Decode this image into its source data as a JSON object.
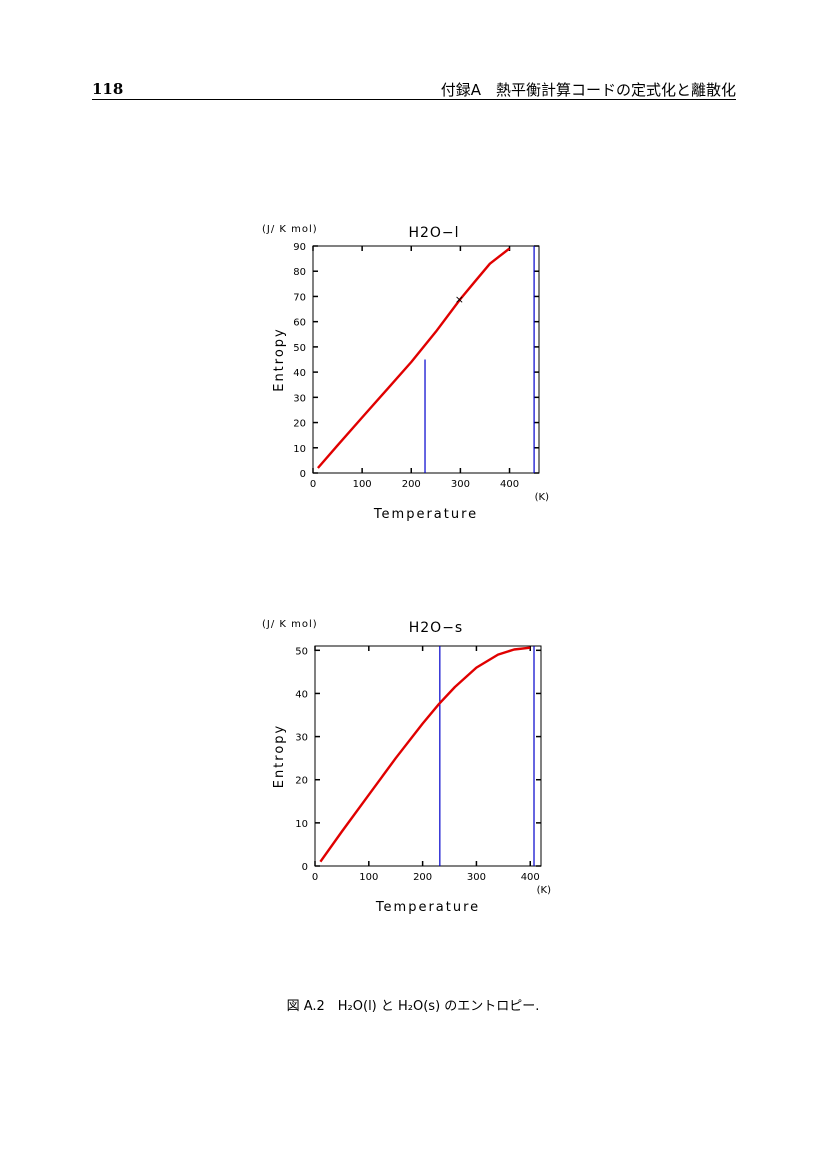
{
  "header": {
    "page_number": "118",
    "running_head": "付録A　熱平衡計算コードの定式化と離散化"
  },
  "chart_data": [
    {
      "type": "line",
      "title": "H2O−l",
      "unit_label": "(J/ K mol)",
      "ylabel": "Entropy",
      "xlabel": "Temperature",
      "xunit": "(K)",
      "xlim": [
        0,
        460
      ],
      "ylim": [
        0,
        90
      ],
      "xticks": [
        0,
        100,
        200,
        300,
        400
      ],
      "yticks": [
        0,
        10,
        20,
        30,
        40,
        50,
        60,
        70,
        80,
        90
      ],
      "series": [
        {
          "color": "#e00000",
          "x": [
            10,
            50,
            100,
            150,
            200,
            250,
            300,
            330,
            360,
            380,
            400
          ],
          "y": [
            2,
            11,
            22,
            33,
            44,
            56,
            69,
            76,
            83,
            86,
            89
          ]
        }
      ],
      "marker": {
        "x": 298,
        "y": 69,
        "symbol": "×"
      },
      "vlines": [
        {
          "x": 228,
          "ymax": 45,
          "color": "#0000cc"
        },
        {
          "x": 450,
          "ymax": 90,
          "color": "#0000cc"
        }
      ]
    },
    {
      "type": "line",
      "title": "H2O−s",
      "unit_label": "(J/ K mol)",
      "ylabel": "Entropy",
      "xlabel": "Temperature",
      "xunit": "(K)",
      "xlim": [
        0,
        420
      ],
      "ylim": [
        0,
        51
      ],
      "xticks": [
        0,
        100,
        200,
        300,
        400
      ],
      "yticks": [
        0,
        10,
        20,
        30,
        40,
        50
      ],
      "series": [
        {
          "color": "#e00000",
          "x": [
            10,
            50,
            100,
            150,
            200,
            230,
            260,
            300,
            340,
            370,
            400
          ],
          "y": [
            1,
            8,
            16.5,
            25,
            33,
            37.5,
            41.5,
            46,
            49,
            50.2,
            50.6
          ]
        }
      ],
      "vlines": [
        {
          "x": 232,
          "ymax": 51,
          "color": "#0000cc"
        },
        {
          "x": 407,
          "ymax": 51,
          "color": "#0000cc"
        }
      ]
    }
  ],
  "caption": "図 A.2　H₂O(l) と H₂O(s) のエントロピー."
}
